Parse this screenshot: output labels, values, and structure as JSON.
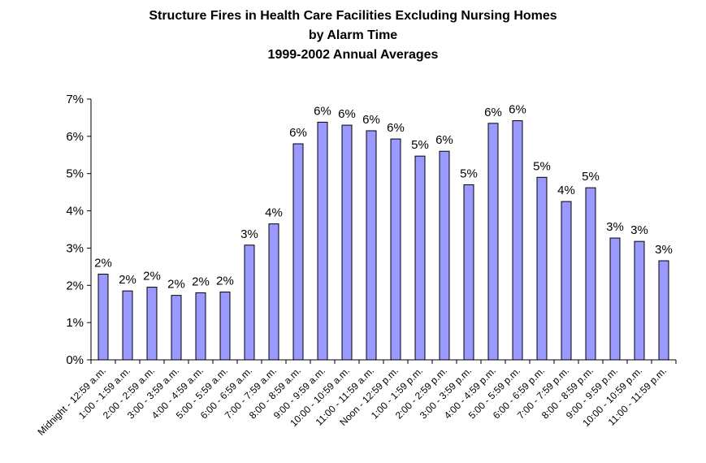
{
  "chart_data": {
    "type": "bar",
    "title_lines": [
      "Structure Fires in Health Care Facilities Excluding Nursing Homes",
      "by Alarm Time",
      "1999-2002 Annual Averages"
    ],
    "xlabel": "",
    "ylabel": "",
    "ylim": [
      0,
      7
    ],
    "y_ticks": [
      "0%",
      "1%",
      "2%",
      "3%",
      "4%",
      "5%",
      "6%",
      "7%"
    ],
    "grid": false,
    "legend": "none",
    "bar_color": "#9999ff",
    "categories": [
      "Midnight - 12:59 a.m.",
      "1:00 - 1:59 a.m.",
      "2:00 - 2:59 a.m.",
      "3:00 - 3:59 a.m.",
      "4:00 - 4:59 a.m.",
      "5:00 - 5:59 a.m.",
      "6:00 - 6:59 a.m.",
      "7:00 - 7:59 a.m.",
      "8:00 - 8:59 a.m.",
      "9:00 - 9:59 a.m.",
      "10:00 - 10:59 a.m.",
      "11:00 - 11:59 a.m.",
      "Noon - 12:59 p.m.",
      "1:00 - 1:59 p.m.",
      "2:00 - 2:59 p.m.",
      "3:00 - 3:59 p.m.",
      "4:00 - 4:59 p.m.",
      "5:00 - 5:59 p.m.",
      "6:00 - 6:59 p.m.",
      "7:00 - 7:59 p.m.",
      "8:00 - 8:59 p.m.",
      "9:00 - 9:59 p.m.",
      "10:00 - 10:59 p.m.",
      "11:00 - 11:59 p.m."
    ],
    "values": [
      2.3,
      1.85,
      1.95,
      1.73,
      1.8,
      1.82,
      3.08,
      3.65,
      5.8,
      6.38,
      6.3,
      6.15,
      5.93,
      5.47,
      5.6,
      4.7,
      6.35,
      6.42,
      4.9,
      4.25,
      4.62,
      3.27,
      3.18,
      2.66
    ],
    "data_labels": [
      "2%",
      "2%",
      "2%",
      "2%",
      "2%",
      "2%",
      "3%",
      "4%",
      "6%",
      "6%",
      "6%",
      "6%",
      "6%",
      "5%",
      "6%",
      "5%",
      "6%",
      "6%",
      "5%",
      "4%",
      "5%",
      "3%",
      "3%",
      "3%"
    ]
  }
}
